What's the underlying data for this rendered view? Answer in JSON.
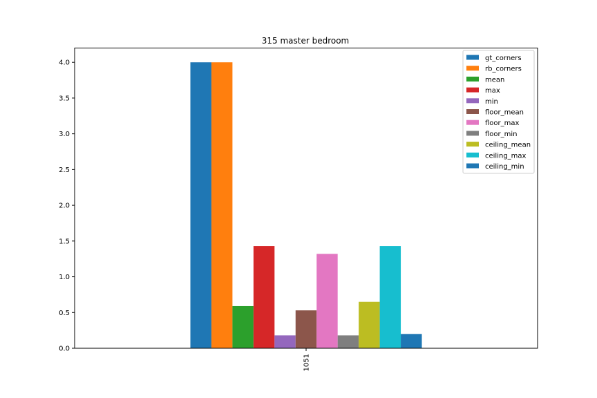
{
  "chart_data": {
    "type": "bar",
    "title": "315 master bedroom",
    "xlabel": "",
    "ylabel": "",
    "categories": [
      "1051"
    ],
    "ylim": [
      0,
      4.2
    ],
    "yticks": [
      "0.0",
      "0.5",
      "1.0",
      "1.5",
      "2.0",
      "2.5",
      "3.0",
      "3.5",
      "4.0"
    ],
    "legend_position": "top-right",
    "grid": false,
    "series": [
      {
        "name": "gt_corners",
        "values": [
          4.0
        ],
        "color": "#1f77b4"
      },
      {
        "name": "rb_corners",
        "values": [
          4.0
        ],
        "color": "#ff7f0e"
      },
      {
        "name": "mean",
        "values": [
          0.59
        ],
        "color": "#2ca02c"
      },
      {
        "name": "max",
        "values": [
          1.43
        ],
        "color": "#d62728"
      },
      {
        "name": "min",
        "values": [
          0.18
        ],
        "color": "#9467bd"
      },
      {
        "name": "floor_mean",
        "values": [
          0.53
        ],
        "color": "#8c564b"
      },
      {
        "name": "floor_max",
        "values": [
          1.32
        ],
        "color": "#e377c2"
      },
      {
        "name": "floor_min",
        "values": [
          0.18
        ],
        "color": "#7f7f7f"
      },
      {
        "name": "ceiling_mean",
        "values": [
          0.65
        ],
        "color": "#bcbd22"
      },
      {
        "name": "ceiling_max",
        "values": [
          1.43
        ],
        "color": "#17becf"
      },
      {
        "name": "ceiling_min",
        "values": [
          0.2
        ],
        "color": "#1f77b4"
      }
    ]
  }
}
